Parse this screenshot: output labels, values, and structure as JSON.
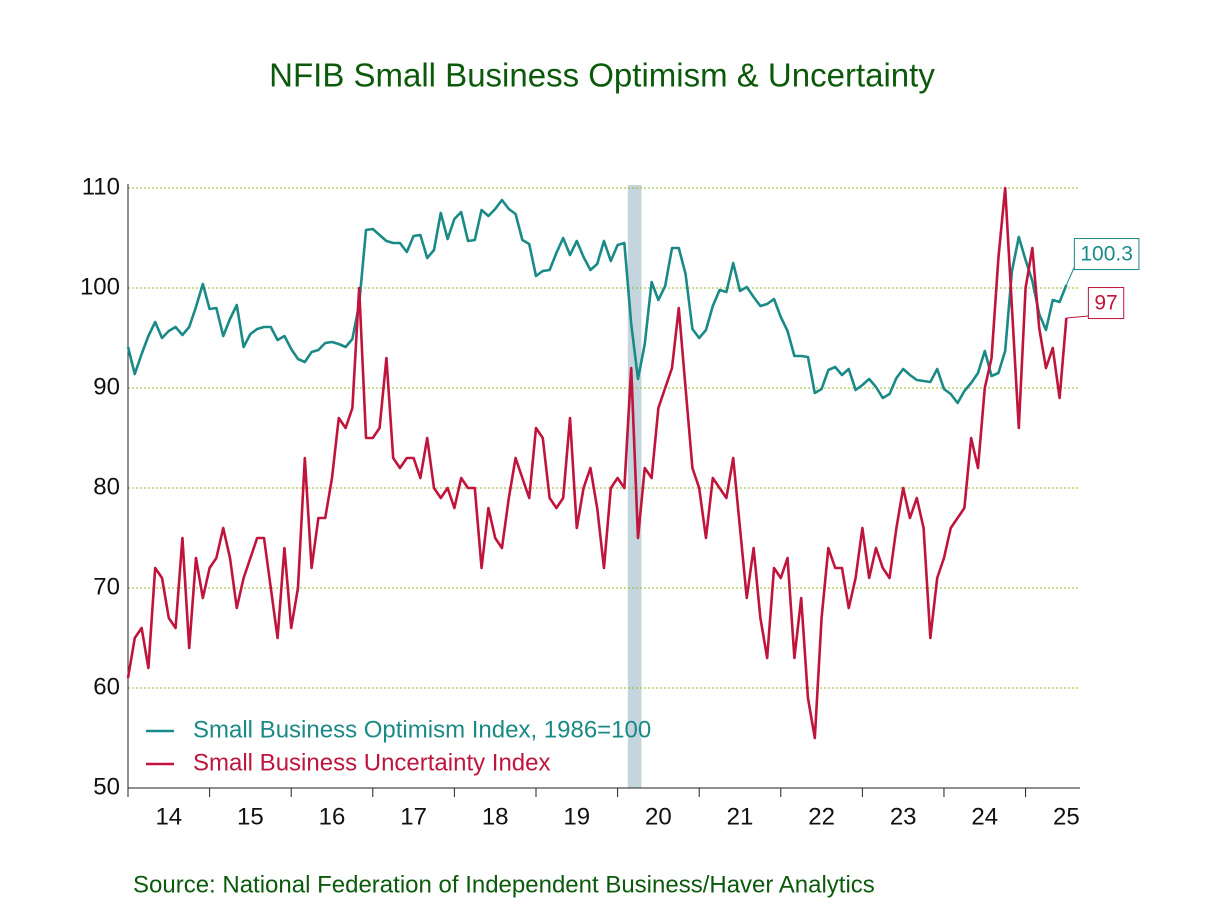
{
  "chart_data": {
    "type": "line",
    "title": "NFIB Small Business Optimism & Uncertainty",
    "source": "Source:  National Federation of Independent Business/Haver Analytics",
    "x": [
      2014,
      2014.083,
      2014.167,
      2014.25,
      2014.333,
      2014.417,
      2014.5,
      2014.583,
      2014.667,
      2014.75,
      2014.833,
      2014.917,
      2015,
      2015.083,
      2015.167,
      2015.25,
      2015.333,
      2015.417,
      2015.5,
      2015.583,
      2015.667,
      2015.75,
      2015.833,
      2015.917,
      2016,
      2016.083,
      2016.167,
      2016.25,
      2016.333,
      2016.417,
      2016.5,
      2016.583,
      2016.667,
      2016.75,
      2016.833,
      2016.917,
      2017,
      2017.083,
      2017.167,
      2017.25,
      2017.333,
      2017.417,
      2017.5,
      2017.583,
      2017.667,
      2017.75,
      2017.833,
      2017.917,
      2018,
      2018.083,
      2018.167,
      2018.25,
      2018.333,
      2018.417,
      2018.5,
      2018.583,
      2018.667,
      2018.75,
      2018.833,
      2018.917,
      2019,
      2019.083,
      2019.167,
      2019.25,
      2019.333,
      2019.417,
      2019.5,
      2019.583,
      2019.667,
      2019.75,
      2019.833,
      2019.917,
      2020,
      2020.083,
      2020.167,
      2020.25,
      2020.333,
      2020.417,
      2020.5,
      2020.583,
      2020.667,
      2020.75,
      2020.833,
      2020.917,
      2021,
      2021.083,
      2021.167,
      2021.25,
      2021.333,
      2021.417,
      2021.5,
      2021.583,
      2021.667,
      2021.75,
      2021.833,
      2021.917,
      2022,
      2022.083,
      2022.167,
      2022.25,
      2022.333,
      2022.417,
      2022.5,
      2022.583,
      2022.667,
      2022.75,
      2022.833,
      2022.917,
      2023,
      2023.083,
      2023.167,
      2023.25,
      2023.333,
      2023.417,
      2023.5,
      2023.583,
      2023.667,
      2023.75,
      2023.833,
      2023.917,
      2024,
      2024.083,
      2024.167,
      2024.25,
      2024.333,
      2024.417,
      2024.5,
      2024.583,
      2024.667,
      2024.75,
      2024.833,
      2024.917,
      2025,
      2025.083,
      2025.167,
      2025.25,
      2025.333,
      2025.417,
      2025.5
    ],
    "series": [
      {
        "name": "Small Business Optimism Index, 1986=100",
        "color": "#1a8a87",
        "values": [
          94.1,
          91.4,
          93.4,
          95.2,
          96.6,
          95.0,
          95.7,
          96.1,
          95.3,
          96.1,
          98.1,
          100.4,
          97.9,
          98.0,
          95.2,
          96.9,
          98.3,
          94.1,
          95.4,
          95.9,
          96.1,
          96.1,
          94.8,
          95.2,
          93.9,
          92.9,
          92.6,
          93.6,
          93.8,
          94.5,
          94.6,
          94.4,
          94.1,
          94.9,
          98.4,
          105.8,
          105.9,
          105.3,
          104.7,
          104.5,
          104.5,
          103.6,
          105.2,
          105.3,
          103.0,
          103.8,
          107.5,
          104.9,
          106.9,
          107.6,
          104.7,
          104.8,
          107.8,
          107.2,
          107.9,
          108.8,
          107.9,
          107.4,
          104.8,
          104.4,
          101.2,
          101.7,
          101.8,
          103.5,
          105.0,
          103.3,
          104.7,
          103.1,
          101.8,
          102.4,
          104.7,
          102.7,
          104.3,
          104.5,
          96.4,
          90.9,
          94.4,
          100.6,
          98.8,
          100.2,
          104.0,
          104.0,
          101.4,
          95.9,
          95.0,
          95.8,
          98.2,
          99.8,
          99.6,
          102.5,
          99.7,
          100.1,
          99.1,
          98.2,
          98.4,
          98.9,
          97.1,
          95.7,
          93.2,
          93.2,
          93.1,
          89.5,
          89.9,
          91.8,
          92.1,
          91.3,
          91.9,
          89.8,
          90.3,
          90.9,
          90.1,
          89.0,
          89.4,
          91.0,
          91.9,
          91.3,
          90.8,
          90.7,
          90.6,
          91.9,
          89.9,
          89.4,
          88.5,
          89.7,
          90.5,
          91.5,
          93.7,
          91.2,
          91.5,
          93.7,
          101.7,
          105.1,
          102.8,
          100.7,
          97.4,
          95.8,
          98.8,
          98.6,
          100.3
        ]
      },
      {
        "name": "Small Business Uncertainty Index",
        "color": "#c0143c",
        "values": [
          61,
          65,
          66,
          62,
          72,
          71,
          67,
          66,
          75,
          64,
          73,
          69,
          72,
          73,
          76,
          73,
          68,
          71,
          73,
          75,
          75,
          70,
          65,
          74,
          66,
          70,
          83,
          72,
          77,
          77,
          81,
          87,
          86,
          88,
          100,
          85,
          85,
          86,
          93,
          83,
          82,
          83,
          83,
          81,
          85,
          80,
          79,
          80,
          78,
          81,
          80,
          80,
          72,
          78,
          75,
          74,
          79,
          83,
          81,
          79,
          86,
          85,
          79,
          78,
          79,
          87,
          76,
          80,
          82,
          78,
          72,
          80,
          81,
          80,
          92,
          75,
          82,
          81,
          88,
          90,
          92,
          98,
          90,
          82,
          80,
          75,
          81,
          80,
          79,
          83,
          76,
          69,
          74,
          67,
          63,
          72,
          71,
          73,
          63,
          69,
          59,
          55,
          67,
          74,
          72,
          72,
          68,
          71,
          76,
          71,
          74,
          72,
          71,
          76,
          80,
          77,
          79,
          76,
          65,
          71,
          73,
          76,
          77,
          78,
          85,
          82,
          90,
          93,
          103,
          110,
          98,
          86,
          100,
          104,
          96,
          92,
          94,
          89,
          97
        ]
      }
    ],
    "recessions": [
      [
        2020.125,
        2020.292
      ]
    ],
    "xlim": [
      2014,
      2025.667
    ],
    "xticks": [
      {
        "value": 2014,
        "label": "14"
      },
      {
        "value": 2015,
        "label": "15"
      },
      {
        "value": 2016,
        "label": "16"
      },
      {
        "value": 2017,
        "label": "17"
      },
      {
        "value": 2018,
        "label": "18"
      },
      {
        "value": 2019,
        "label": "19"
      },
      {
        "value": 2020,
        "label": "20"
      },
      {
        "value": 2021,
        "label": "21"
      },
      {
        "value": 2022,
        "label": "22"
      },
      {
        "value": 2023,
        "label": "23"
      },
      {
        "value": 2024,
        "label": "24"
      },
      {
        "value": 2025,
        "label": "25"
      }
    ],
    "ylim": [
      50,
      110
    ],
    "yticks": [
      50,
      60,
      70,
      80,
      90,
      100,
      110
    ],
    "grid": true,
    "legend": "lower left"
  }
}
